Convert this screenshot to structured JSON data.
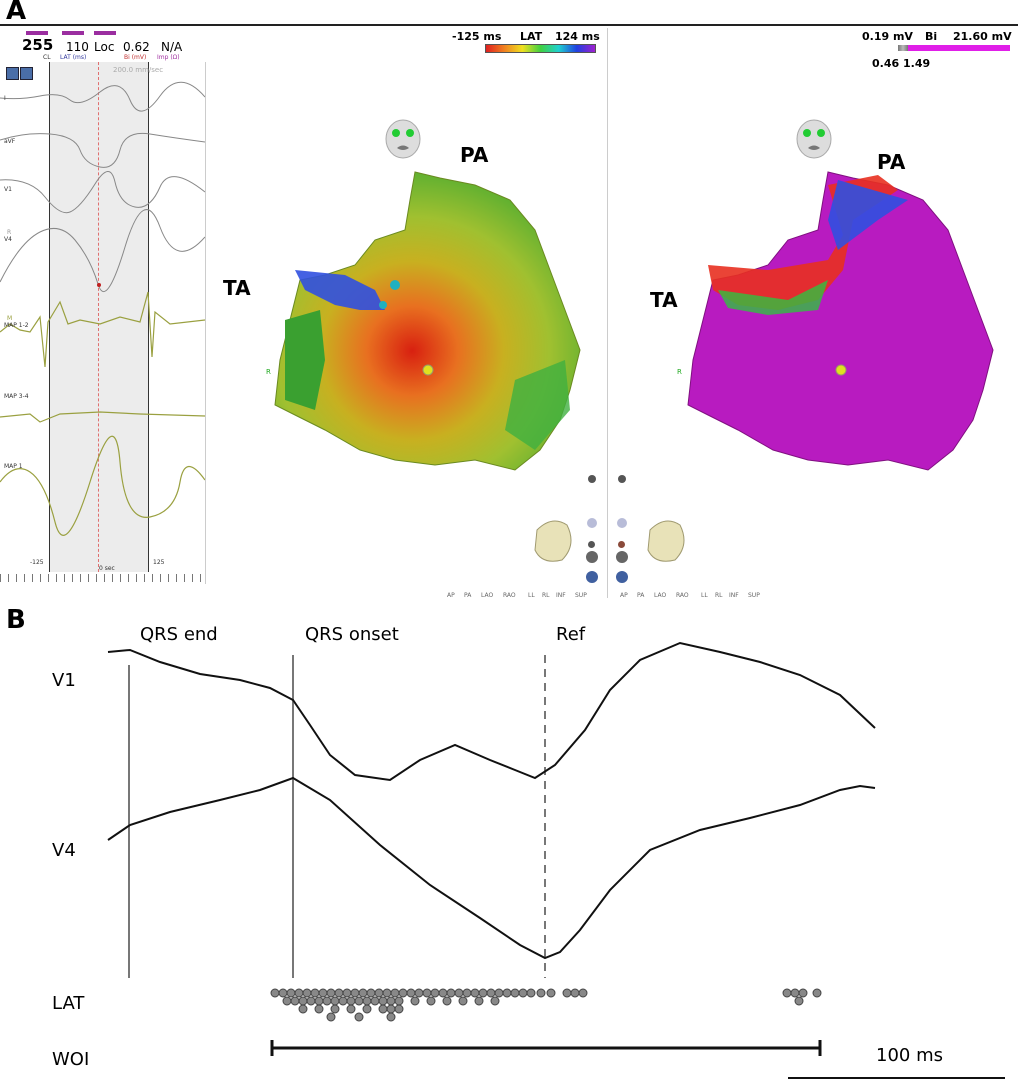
{
  "panel_a_label": "A",
  "panel_b_label": "B",
  "panel_a": {
    "readout": {
      "cl_value": "255",
      "cl_label": "CL",
      "lat_value": "110",
      "lat_label": "LAT (ms)",
      "loc_value": "Loc",
      "bi_value": "0.62",
      "bi_label": "Bi (mV)",
      "imp_value": "N/A",
      "imp_label": "Imp (Ω)"
    },
    "speed": "200.0 mm/sec",
    "channels": [
      "I",
      "aVF",
      "V1",
      "V4",
      "MAP 1-2",
      "MAP 3-4",
      "MAP 1"
    ],
    "channel_v4_marker": "R",
    "channel_map_marker": "M",
    "time_labels": {
      "left": "-125",
      "center": "0 sec",
      "right": "125"
    },
    "lat_scale": {
      "min": "-125 ms",
      "label": "LAT",
      "max": "124 ms"
    },
    "bi_scale": {
      "min": "0.19 mV",
      "label": "Bi",
      "max": "21.60 mV",
      "low": "0.46",
      "high": "1.49"
    },
    "map_labels": {
      "pa": "PA",
      "ta": "TA",
      "r": "R"
    },
    "view_buttons": [
      "AP",
      "PA",
      "LAO",
      "RAO",
      "LL",
      "RL",
      "INF",
      "SUP"
    ],
    "colors": {
      "lat_map_base": "#9bc436",
      "bi_map_base": "#b81bc0",
      "trace": "#888888",
      "map_trace": "#9aa040"
    }
  },
  "panel_b": {
    "markers": {
      "qrs_end": "QRS end",
      "qrs_onset": "QRS onset",
      "ref": "Ref"
    },
    "rows": {
      "v1": "V1",
      "v4": "V4",
      "lat": "LAT",
      "woi": "WOI"
    },
    "scale_bar": "100 ms"
  }
}
